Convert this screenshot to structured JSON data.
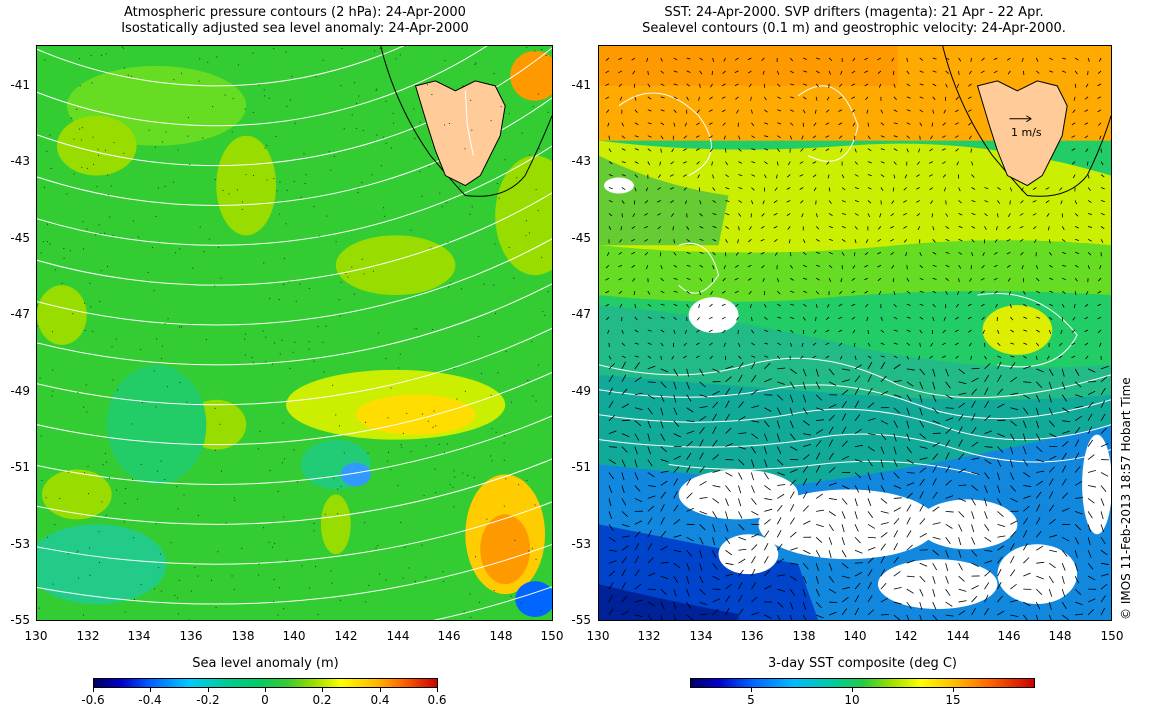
{
  "left_panel": {
    "title_line1": "Atmospheric pressure contours (2 hPa): 24-Apr-2000",
    "title_line2": "Isostatically adjusted sea level anomaly: 24-Apr-2000",
    "colorbar": {
      "label": "Sea level anomaly (m)",
      "ticks": [
        "-0.6",
        "-0.4",
        "-0.2",
        "0",
        "0.2",
        "0.4",
        "0.6"
      ],
      "range": [
        -0.6,
        0.6
      ]
    }
  },
  "right_panel": {
    "title_line1": "SST: 24-Apr-2000. SVP drifters (magenta): 21 Apr - 22 Apr.",
    "title_line2": "Sealevel contours (0.1 m) and geostrophic velocity: 24-Apr-2000.",
    "velocity_scale_label": "1 m/s",
    "colorbar": {
      "label": "3-day SST composite (deg C)",
      "ticks": [
        "5",
        "10",
        "15"
      ],
      "tick_values": [
        5,
        10,
        15
      ],
      "range": [
        2,
        19
      ]
    }
  },
  "axes": {
    "lon_ticks": [
      "130",
      "132",
      "134",
      "136",
      "138",
      "140",
      "142",
      "144",
      "146",
      "148",
      "150"
    ],
    "lat_ticks": [
      "-41",
      "-43",
      "-45",
      "-47",
      "-49",
      "-51",
      "-53",
      "-55"
    ]
  },
  "credit": "© IMOS 11-Feb-2013 18:57 Hobart Time",
  "colors": {
    "land": "#ffcc99",
    "coast": "#000000",
    "contour": "#ffffff"
  }
}
